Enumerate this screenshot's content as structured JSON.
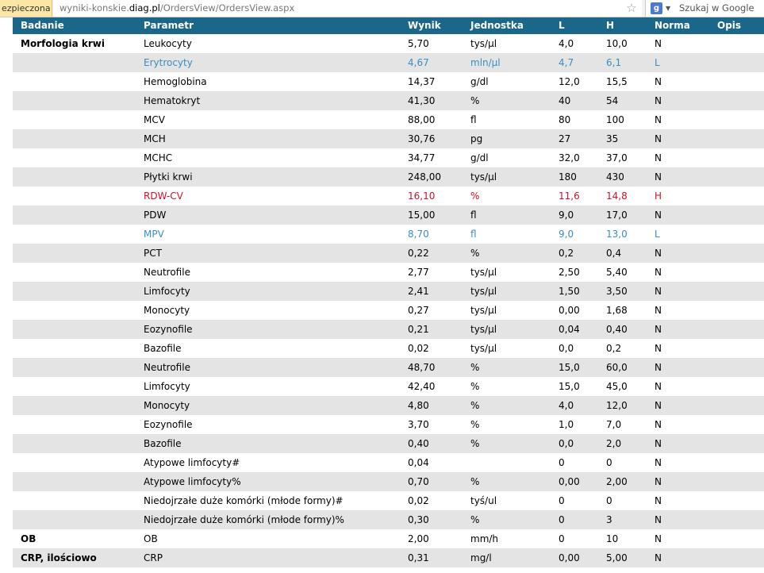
{
  "browser": {
    "security_label": "ezpieczona",
    "url_prefix": "wyniki-konskie.",
    "url_host": "diag.pl",
    "url_path": "/OrdersView/OrdersView.aspx",
    "search_placeholder": "Szukaj w Google",
    "star_icon": "star-icon",
    "search_engine_icon": "google-icon"
  },
  "table": {
    "headers": {
      "badanie": "Badanie",
      "parametr": "Parametr",
      "wynik": "Wynik",
      "jednostka": "Jednostka",
      "l": "L",
      "h": "H",
      "norma": "Norma",
      "opis": "Opis"
    },
    "colors": {
      "header_bg": "#1a6789",
      "low": "#3a8ec2",
      "high": "#d0102e",
      "stripe": "#e4e4e4"
    },
    "rows": [
      {
        "badanie": "Morfologia krwi",
        "parametr": "Leukocyty",
        "wynik": "5,70",
        "jednostka": "tys/µl",
        "l": "4,0",
        "h": "10,0",
        "norma": "N"
      },
      {
        "badanie": "",
        "parametr": "Erytrocyty",
        "wynik": "4,67",
        "jednostka": "mln/µl",
        "l": "4,7",
        "h": "6,1",
        "norma": "L"
      },
      {
        "badanie": "",
        "parametr": "Hemoglobina",
        "wynik": "14,37",
        "jednostka": "g/dl",
        "l": "12,0",
        "h": "15,5",
        "norma": "N"
      },
      {
        "badanie": "",
        "parametr": "Hematokryt",
        "wynik": "41,30",
        "jednostka": "%",
        "l": "40",
        "h": "54",
        "norma": "N"
      },
      {
        "badanie": "",
        "parametr": "MCV",
        "wynik": "88,00",
        "jednostka": "fl",
        "l": "80",
        "h": "100",
        "norma": "N"
      },
      {
        "badanie": "",
        "parametr": "MCH",
        "wynik": "30,76",
        "jednostka": "pg",
        "l": "27",
        "h": "35",
        "norma": "N"
      },
      {
        "badanie": "",
        "parametr": "MCHC",
        "wynik": "34,77",
        "jednostka": "g/dl",
        "l": "32,0",
        "h": "37,0",
        "norma": "N"
      },
      {
        "badanie": "",
        "parametr": "Płytki krwi",
        "wynik": "248,00",
        "jednostka": "tys/µl",
        "l": "180",
        "h": "430",
        "norma": "N"
      },
      {
        "badanie": "",
        "parametr": "RDW-CV",
        "wynik": "16,10",
        "jednostka": "%",
        "l": "11,6",
        "h": "14,8",
        "norma": "H"
      },
      {
        "badanie": "",
        "parametr": "PDW",
        "wynik": "15,00",
        "jednostka": "fl",
        "l": "9,0",
        "h": "17,0",
        "norma": "N"
      },
      {
        "badanie": "",
        "parametr": "MPV",
        "wynik": "8,70",
        "jednostka": "fl",
        "l": "9,0",
        "h": "13,0",
        "norma": "L"
      },
      {
        "badanie": "",
        "parametr": "PCT",
        "wynik": "0,22",
        "jednostka": "%",
        "l": "0,2",
        "h": "0,4",
        "norma": "N"
      },
      {
        "badanie": "",
        "parametr": "Neutrofile",
        "wynik": "2,77",
        "jednostka": "tys/µl",
        "l": "2,50",
        "h": "5,40",
        "norma": "N"
      },
      {
        "badanie": "",
        "parametr": "Limfocyty",
        "wynik": "2,41",
        "jednostka": "tys/µl",
        "l": "1,50",
        "h": "3,50",
        "norma": "N"
      },
      {
        "badanie": "",
        "parametr": "Monocyty",
        "wynik": "0,27",
        "jednostka": "tys/µl",
        "l": "0,00",
        "h": "1,68",
        "norma": "N"
      },
      {
        "badanie": "",
        "parametr": "Eozynofile",
        "wynik": "0,21",
        "jednostka": "tys/µl",
        "l": "0,04",
        "h": "0,40",
        "norma": "N"
      },
      {
        "badanie": "",
        "parametr": "Bazofile",
        "wynik": "0,02",
        "jednostka": "tys/µl",
        "l": "0,0",
        "h": "0,2",
        "norma": "N"
      },
      {
        "badanie": "",
        "parametr": "Neutrofile",
        "wynik": "48,70",
        "jednostka": "%",
        "l": "15,0",
        "h": "60,0",
        "norma": "N"
      },
      {
        "badanie": "",
        "parametr": "Limfocyty",
        "wynik": "42,40",
        "jednostka": "%",
        "l": "15,0",
        "h": "45,0",
        "norma": "N"
      },
      {
        "badanie": "",
        "parametr": "Monocyty",
        "wynik": "4,80",
        "jednostka": "%",
        "l": "4,0",
        "h": "12,0",
        "norma": "N"
      },
      {
        "badanie": "",
        "parametr": "Eozynofile",
        "wynik": "3,70",
        "jednostka": "%",
        "l": "1,0",
        "h": "7,0",
        "norma": "N"
      },
      {
        "badanie": "",
        "parametr": "Bazofile",
        "wynik": "0,40",
        "jednostka": "%",
        "l": "0,0",
        "h": "2,0",
        "norma": "N"
      },
      {
        "badanie": "",
        "parametr": "Atypowe limfocyty#",
        "wynik": "0,04",
        "jednostka": "",
        "l": "0",
        "h": "0",
        "norma": "N"
      },
      {
        "badanie": "",
        "parametr": "Atypowe limfocyty%",
        "wynik": "0,70",
        "jednostka": "%",
        "l": "0,00",
        "h": "2,00",
        "norma": "N"
      },
      {
        "badanie": "",
        "parametr": "Niedojrzałe duże komórki (młode formy)#",
        "wynik": "0,02",
        "jednostka": "tyś/ul",
        "l": "0",
        "h": "0",
        "norma": "N"
      },
      {
        "badanie": "",
        "parametr": "Niedojrzałe duże komórki (młode formy)%",
        "wynik": "0,30",
        "jednostka": "%",
        "l": "0",
        "h": "3",
        "norma": "N"
      },
      {
        "badanie": "OB",
        "parametr": "OB",
        "wynik": "2,00",
        "jednostka": "mm/h",
        "l": "0",
        "h": "10",
        "norma": "N"
      },
      {
        "badanie": "CRP, ilościowo",
        "parametr": "CRP",
        "wynik": "0,31",
        "jednostka": "mg/l",
        "l": "0,00",
        "h": "5,00",
        "norma": "N"
      }
    ]
  }
}
